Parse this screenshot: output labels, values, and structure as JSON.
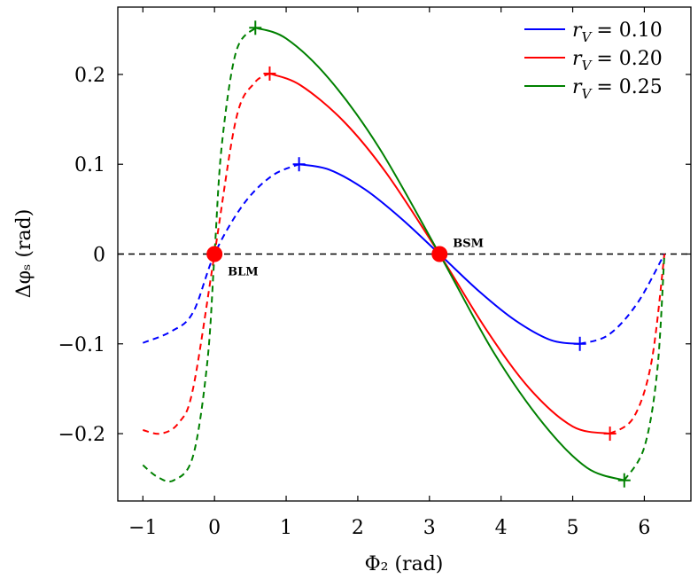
{
  "chart_data": {
    "type": "line",
    "xlabel": "Φ₂ (rad)",
    "ylabel": "Δφₛ (rad)",
    "xlim": [
      -1.35,
      6.65
    ],
    "ylim": [
      -0.275,
      0.275
    ],
    "xticks": [
      -1,
      0,
      1,
      2,
      3,
      4,
      5,
      6
    ],
    "xtick_labels": [
      "−1",
      "0",
      "1",
      "2",
      "3",
      "4",
      "5",
      "6"
    ],
    "yticks": [
      -0.2,
      -0.1,
      0,
      0.1,
      0.2
    ],
    "ytick_labels": [
      "−0.2",
      "−0.1",
      "0",
      "0.1",
      "0.2"
    ],
    "grid": false,
    "legend_position": "top-right",
    "reference_line": {
      "y": 0,
      "style": "dashed",
      "color": "#000000"
    },
    "series": [
      {
        "name": "r_V = 0.10",
        "legend_lhs": "r",
        "legend_sub": "V",
        "legend_rhs": "= 0.10",
        "r": 0.1,
        "color": "#0000ff",
        "x": [
          -1.0,
          -0.6,
          -0.3,
          0.0,
          0.4,
          0.8,
          1.18,
          1.6,
          2.1,
          2.6,
          3.14,
          3.7,
          4.2,
          4.7,
          5.1,
          5.5,
          5.9,
          6.28
        ],
        "values": [
          -0.099,
          -0.086,
          -0.065,
          0.0,
          0.055,
          0.087,
          0.1,
          0.094,
          0.072,
          0.04,
          0.0,
          -0.042,
          -0.074,
          -0.096,
          -0.1,
          -0.09,
          -0.055,
          0.0
        ],
        "solid_range": [
          1.18,
          5.1
        ],
        "markers_x": [
          1.18,
          5.1
        ]
      },
      {
        "name": "r_V = 0.20",
        "legend_lhs": "r",
        "legend_sub": "V",
        "legend_rhs": "= 0.20",
        "r": 0.2,
        "color": "#ff0000",
        "x": [
          -1.0,
          -0.75,
          -0.5,
          -0.3,
          0.0,
          0.3,
          0.55,
          0.77,
          1.2,
          1.8,
          2.4,
          3.14,
          3.8,
          4.4,
          5.0,
          5.52,
          5.85,
          6.1,
          6.28
        ],
        "values": [
          -0.196,
          -0.2,
          -0.188,
          -0.15,
          0.0,
          0.15,
          0.19,
          0.201,
          0.188,
          0.148,
          0.09,
          0.0,
          -0.085,
          -0.15,
          -0.192,
          -0.2,
          -0.182,
          -0.12,
          0.0
        ],
        "solid_range": [
          0.77,
          5.52
        ],
        "markers_x": [
          0.77,
          5.52
        ]
      },
      {
        "name": "r_V = 0.25",
        "legend_lhs": "r",
        "legend_sub": "V",
        "legend_rhs": "= 0.25",
        "r": 0.25,
        "color": "#008000",
        "x": [
          -1.0,
          -0.8,
          -0.57,
          -0.3,
          -0.1,
          0.0,
          0.1,
          0.3,
          0.57,
          1.0,
          1.6,
          2.3,
          3.14,
          3.9,
          4.6,
          5.2,
          5.72,
          6.0,
          6.18,
          6.28
        ],
        "values": [
          -0.235,
          -0.248,
          -0.252,
          -0.225,
          -0.12,
          0.0,
          0.12,
          0.225,
          0.252,
          0.24,
          0.195,
          0.118,
          0.0,
          -0.11,
          -0.19,
          -0.238,
          -0.252,
          -0.215,
          -0.13,
          0.0
        ],
        "solid_range": [
          0.57,
          5.72
        ],
        "markers_x": [
          0.57,
          5.72
        ]
      }
    ],
    "points": [
      {
        "label": "BLM",
        "x": 0,
        "y": 0,
        "color": "#ff0000",
        "label_position": "below-right"
      },
      {
        "label": "BSM",
        "x": 3.14159,
        "y": 0,
        "color": "#ff0000",
        "label_position": "above-right"
      }
    ]
  }
}
